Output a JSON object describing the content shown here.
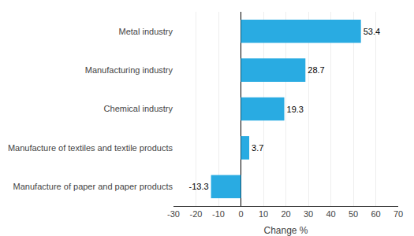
{
  "chart_data": {
    "type": "bar",
    "orientation": "horizontal",
    "categories": [
      "Manufacture of paper and paper products",
      "Manufacture of textiles and textile products",
      "Chemical industry",
      "Manufacturing industry",
      "Metal industry"
    ],
    "values": [
      -13.3,
      3.7,
      19.3,
      28.7,
      53.4
    ],
    "color": "#29abe2",
    "xlabel": "Change %",
    "xlim": [
      -30,
      70
    ],
    "xticks": [
      -30,
      -20,
      -10,
      0,
      10,
      20,
      30,
      40,
      50,
      60,
      70
    ],
    "grid": true,
    "data_labels": true
  }
}
